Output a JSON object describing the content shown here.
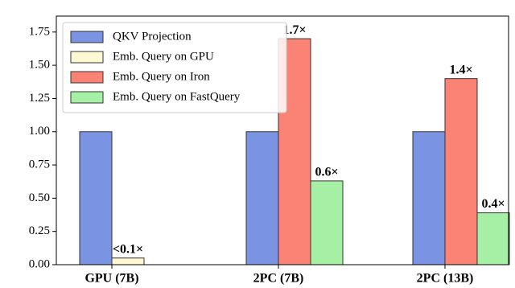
{
  "chart_data": {
    "type": "bar",
    "categories": [
      "GPU (7B)",
      "2PC (7B)",
      "2PC (13B)"
    ],
    "series": [
      {
        "name": "QKV Projection",
        "color": "#7b93e3",
        "values": [
          1.0,
          1.0,
          1.0
        ]
      },
      {
        "name": "Emb. Query on GPU",
        "color": "#fdf8d2",
        "values": [
          0.05,
          null,
          null
        ],
        "value_labels": [
          "<0.1×",
          null,
          null
        ]
      },
      {
        "name": "Emb. Query on Iron",
        "color": "#fa8375",
        "values": [
          null,
          1.7,
          1.4
        ],
        "value_labels": [
          null,
          "1.7×",
          "1.4×"
        ]
      },
      {
        "name": "Emb. Query on FastQuery",
        "color": "#a6f0a6",
        "values": [
          null,
          0.63,
          0.39
        ],
        "value_labels": [
          null,
          "0.6×",
          "0.4×"
        ]
      }
    ],
    "ylim": [
      0,
      1.87
    ],
    "yticks": [
      {
        "value": 0,
        "label": "0.00"
      },
      0.25,
      {
        "value": 0.5,
        "label": "0.50"
      },
      0.75,
      {
        "value": 1,
        "label": "1.00"
      },
      1.25,
      {
        "value": 1.5,
        "label": "1.50"
      },
      1.75
    ],
    "legend": "upper-left"
  }
}
